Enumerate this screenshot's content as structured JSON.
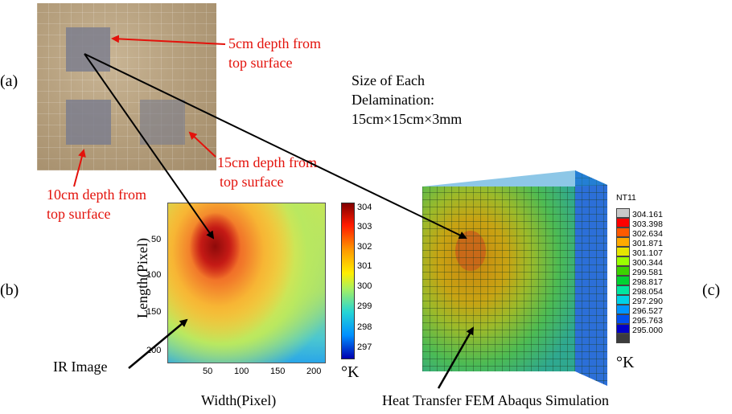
{
  "panels": {
    "a": "(a)",
    "b": "(b)",
    "c": "(c)"
  },
  "photo": {
    "labels": {
      "d5": [
        "5cm depth from",
        "top surface"
      ],
      "d10": [
        "10cm depth from",
        "top surface"
      ],
      "d15": [
        "15cm depth from",
        "top surface"
      ]
    },
    "label_color": "#e3120b"
  },
  "size_note": [
    "Size of Each",
    "Delamination:",
    "15cm×15cm×3mm"
  ],
  "ir_image": {
    "caption": "IR Image",
    "xlabel": "Width(Pixel)",
    "ylabel": "Length(Pixel)",
    "xticks": [
      "50",
      "100",
      "150",
      "200"
    ],
    "yticks": [
      "50",
      "100",
      "150",
      "200"
    ],
    "colorbar_ticks": [
      "304",
      "303",
      "302",
      "301",
      "300",
      "299",
      "298",
      "297"
    ],
    "unit": "°K"
  },
  "fem": {
    "caption": "Heat Transfer FEM Abaqus Simulation",
    "legend_title": "NT11",
    "legend_values": [
      "304.161",
      "303.398",
      "302.634",
      "301.871",
      "301.107",
      "300.344",
      "299.581",
      "298.817",
      "298.054",
      "297.290",
      "296.527",
      "295.763",
      "295.000"
    ],
    "legend_colors": [
      "#c8c8c8",
      "#ff0000",
      "#ff5a00",
      "#ffaa00",
      "#e6e600",
      "#9aff00",
      "#3cd200",
      "#00d232",
      "#00e6a0",
      "#00d2e6",
      "#0096ff",
      "#0050f0",
      "#0000c8",
      "#3c3c3c"
    ],
    "unit": "°K"
  }
}
